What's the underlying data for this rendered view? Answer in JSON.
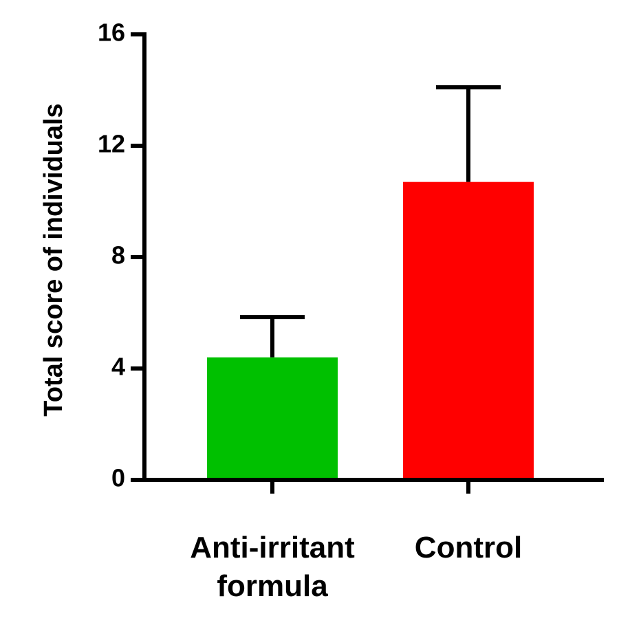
{
  "chart_data": {
    "type": "bar",
    "title": "",
    "xlabel": "",
    "ylabel": "Total score of individuals",
    "ylim": [
      0,
      16
    ],
    "yticks": [
      0,
      4,
      8,
      12,
      16
    ],
    "ytick_labels": [
      "0",
      "4",
      "8",
      "12",
      "16"
    ],
    "grid": false,
    "legend": "none",
    "categories": [
      [
        "Anti-irritant",
        "formula"
      ],
      [
        "Control"
      ]
    ],
    "values": [
      4.4,
      10.7
    ],
    "error_upper": [
      5.85,
      14.1
    ],
    "colors": [
      "#00c000",
      "#ff0000"
    ]
  }
}
